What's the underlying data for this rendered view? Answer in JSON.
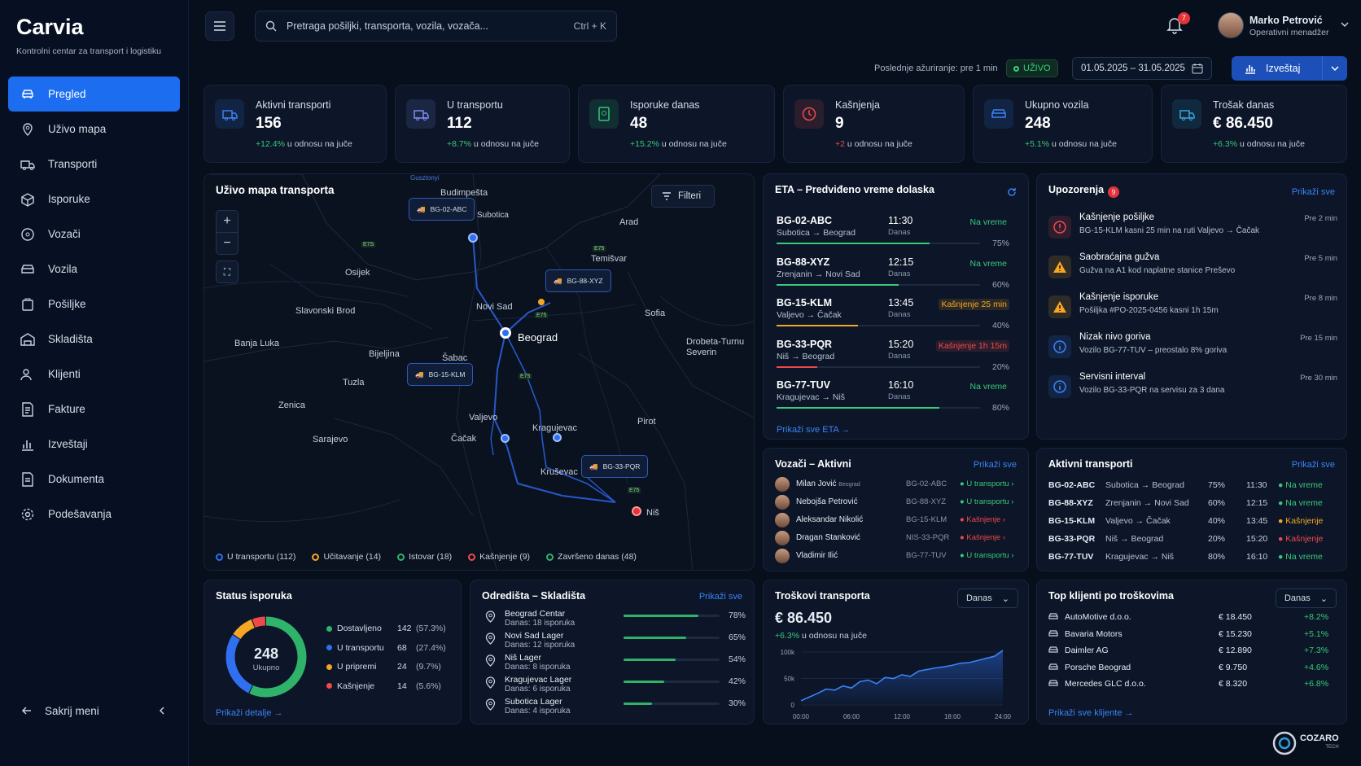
{
  "brand": {
    "name": "Carvia",
    "tagline": "Kontrolni centar za transport i logistiku"
  },
  "nav": {
    "items": [
      {
        "label": "Pregled",
        "icon": "car-icon",
        "active": true
      },
      {
        "label": "Uživo mapa",
        "icon": "map-pin-icon"
      },
      {
        "label": "Transporti",
        "icon": "truck-icon"
      },
      {
        "label": "Isporuke",
        "icon": "package-icon"
      },
      {
        "label": "Vozači",
        "icon": "driver-icon"
      },
      {
        "label": "Vozila",
        "icon": "vehicle-icon"
      },
      {
        "label": "Pošiljke",
        "icon": "box-icon"
      },
      {
        "label": "Skladišta",
        "icon": "warehouse-icon"
      },
      {
        "label": "Klijenti",
        "icon": "users-icon"
      },
      {
        "label": "Fakture",
        "icon": "invoice-icon"
      },
      {
        "label": "Izveštaji",
        "icon": "bar-chart-icon"
      },
      {
        "label": "Dokumenta",
        "icon": "document-icon"
      },
      {
        "label": "Podešavanja",
        "icon": "settings-icon"
      }
    ],
    "hide_label": "Sakrij meni"
  },
  "topbar": {
    "search_placeholder": "Pretraga pošiljki, transporta, vozila, vozača...",
    "search_shortcut": "Ctrl + K",
    "notifications": "7",
    "user_name": "Marko Petrović",
    "user_role": "Operativni menadžer"
  },
  "subbar": {
    "last_update": "Poslednje ažuriranje: pre 1 min",
    "live": "UŽIVO",
    "date_range": "01.05.2025 – 31.05.2025",
    "report": "Izveštaj"
  },
  "kpis": [
    {
      "label": "Aktivni transporti",
      "value": "156",
      "change": "+12.4%",
      "suffix": "u odnosu na juče",
      "color": "#3b82f6"
    },
    {
      "label": "U transportu",
      "value": "112",
      "change": "+8.7%",
      "suffix": "u odnosu na juče",
      "color": "#7c8cf8"
    },
    {
      "label": "Isporuke danas",
      "value": "48",
      "change": "+15.2%",
      "suffix": "u odnosu na juče",
      "color": "#34c77b"
    },
    {
      "label": "Kašnjenja",
      "value": "9",
      "change": "+2",
      "suffix": "u odnosu na juče",
      "color": "#ef4a4a"
    },
    {
      "label": "Ukupno vozila",
      "value": "248",
      "change": "+5.1%",
      "suffix": "u odnosu na juče",
      "color": "#3b82f6"
    },
    {
      "label": "Trošak danas",
      "value": "€ 86.450",
      "change": "+6.3%",
      "suffix": "u odnosu na juče",
      "color": "#35a7d8"
    }
  ],
  "map": {
    "title": "Uživo mapa transporta",
    "filter": "Filteri",
    "cities": [
      "Budimpešta",
      "Arad",
      "Temišvar",
      "Osijek",
      "Slavonski Brod",
      "Novi Sad",
      "Beograd",
      "Banja Luka",
      "Bijeljina",
      "Šabac",
      "Tuzla",
      "Zenica",
      "Valjevo",
      "Sarajevo",
      "Čačak",
      "Kragujevac",
      "Pirot",
      "Kruševac",
      "Niš",
      "Drobeta-Turnu Severin",
      "Sofia",
      "Subotica",
      "Gusztonyi"
    ],
    "road_labels": [
      "E7S",
      "E75",
      "E75",
      "E75",
      "E75"
    ],
    "trucks": [
      "BG-02-ABC",
      "BG-88-XYZ",
      "BG-15-KLM",
      "BG-33-PQR"
    ],
    "legend": [
      "U transportu (112)",
      "Učitavanje (14)",
      "Istovar (18)",
      "Kašnjenje (9)",
      "Završeno danas (48)"
    ]
  },
  "eta": {
    "title": "ETA – Predviđeno vreme dolaska",
    "link": "Prikaži sve ETA",
    "rows": [
      {
        "code": "BG-02-ABC",
        "from": "Subotica",
        "to": "Beograd",
        "time": "11:30",
        "day": "Danas",
        "status": "Na vreme",
        "pct": "75%",
        "progress": 75,
        "color": "#39c97a"
      },
      {
        "code": "BG-88-XYZ",
        "from": "Zrenjanin",
        "to": "Novi Sad",
        "time": "12:15",
        "day": "Danas",
        "status": "Na vreme",
        "pct": "60%",
        "progress": 60,
        "color": "#39c97a"
      },
      {
        "code": "BG-15-KLM",
        "from": "Valjevo",
        "to": "Čačak",
        "time": "13:45",
        "day": "Danas",
        "status": "Kašnjenje 25 min",
        "pct": "40%",
        "progress": 40,
        "color": "#f5a623"
      },
      {
        "code": "BG-33-PQR",
        "from": "Niš",
        "to": "Beograd",
        "time": "15:20",
        "day": "Danas",
        "status": "Kašnjenje 1h 15m",
        "pct": "20%",
        "progress": 20,
        "color": "#ef4a4a"
      },
      {
        "code": "BG-77-TUV",
        "from": "Kragujevac",
        "to": "Niš",
        "time": "16:10",
        "day": "Danas",
        "status": "Na vreme",
        "pct": "80%",
        "progress": 80,
        "color": "#39c97a"
      }
    ]
  },
  "alerts": {
    "title": "Upozorenja",
    "count": "9",
    "link": "Prikaži sve",
    "rows": [
      {
        "title": "Kašnjenje pošiljke",
        "desc": "BG-15-KLM kasni 25 min na ruti Valjevo → Čačak",
        "time": "Pre 2 min",
        "kind": "error-icon",
        "color": "#ef4a4a"
      },
      {
        "title": "Saobraćajna gužva",
        "desc": "Gužva na A1 kod naplatne stanice Preševo",
        "time": "Pre 5 min",
        "kind": "warning-icon",
        "color": "#f5a623"
      },
      {
        "title": "Kašnjenje isporuke",
        "desc": "Pošiljka #PO-2025-0456 kasni 1h 15m",
        "time": "Pre 8 min",
        "kind": "warning-icon",
        "color": "#f5a623"
      },
      {
        "title": "Nizak nivo goriva",
        "desc": "Vozilo BG-77-TUV – preostalo 8% goriva",
        "time": "Pre 15 min",
        "kind": "info-icon",
        "color": "#3b82f6"
      },
      {
        "title": "Servisni interval",
        "desc": "Vozilo BG-33-PQR na servisu za 3 dana",
        "time": "Pre 30 min",
        "kind": "info-icon",
        "color": "#3b82f6"
      }
    ]
  },
  "drivers": {
    "title": "Vozači – Aktivni",
    "link": "Prikaži sve",
    "rows": [
      {
        "name": "Milan Jović",
        "place": "Beograd",
        "vehicle": "BG-02-ABC",
        "status": "U transportu",
        "color": "#39c97a"
      },
      {
        "name": "Nebojša Petrović",
        "vehicle": "BG-88-XYZ",
        "status": "U transportu",
        "color": "#39c97a"
      },
      {
        "name": "Aleksandar Nikolić",
        "vehicle": "BG-15-KLM",
        "status": "Kašnjenje",
        "color": "#ef4a4a"
      },
      {
        "name": "Dragan Stanković",
        "vehicle": "NIS-33-PQR",
        "status": "Kašnjenje",
        "color": "#ef4a4a"
      },
      {
        "name": "Vladimir Ilić",
        "vehicle": "BG-77-TUV",
        "status": "U transportu",
        "color": "#39c97a"
      }
    ]
  },
  "active": {
    "title": "Aktivni transporti",
    "link": "Prikaži sve",
    "rows": [
      {
        "code": "BG-02-ABC",
        "from": "Subotica",
        "to": "Beograd",
        "pct": "75%",
        "time": "11:30",
        "status": "Na vreme",
        "color": "#39c97a"
      },
      {
        "code": "BG-88-XYZ",
        "from": "Zrenjanin",
        "to": "Novi Sad",
        "pct": "60%",
        "time": "12:15",
        "status": "Na vreme",
        "color": "#39c97a"
      },
      {
        "code": "BG-15-KLM",
        "from": "Valjevo",
        "to": "Čačak",
        "pct": "40%",
        "time": "13:45",
        "status": "Kašnjenje",
        "color": "#f5a623"
      },
      {
        "code": "BG-33-PQR",
        "from": "Niš",
        "to": "Beograd",
        "pct": "20%",
        "time": "15:20",
        "status": "Kašnjenje",
        "color": "#ef4a4a"
      },
      {
        "code": "BG-77-TUV",
        "from": "Kragujevac",
        "to": "Niš",
        "pct": "80%",
        "time": "16:10",
        "status": "Na vreme",
        "color": "#39c97a"
      }
    ]
  },
  "status": {
    "title": "Status isporuka",
    "total": "248",
    "total_label": "Ukupno",
    "link": "Prikaži detalje",
    "rows": [
      {
        "label": "Dostavljeno",
        "count": "142",
        "pct": "(57.3%)",
        "value": 142,
        "color": "#2fb36a"
      },
      {
        "label": "U transportu",
        "count": "68",
        "pct": "(27.4%)",
        "value": 68,
        "color": "#2f6ff0"
      },
      {
        "label": "U pripremi",
        "count": "24",
        "pct": "(9.7%)",
        "value": 24,
        "color": "#f5a623"
      },
      {
        "label": "Kašnjenje",
        "count": "14",
        "pct": "(5.6%)",
        "value": 14,
        "color": "#ef4a4a"
      }
    ]
  },
  "destinations": {
    "title": "Odredišta – Skladišta",
    "link": "Prikaži sve",
    "rows": [
      {
        "name": "Beograd Centar",
        "sub": "Danas: 18 isporuka",
        "pct": "78%",
        "progress": 78
      },
      {
        "name": "Novi Sad Lager",
        "sub": "Danas: 12 isporuka",
        "pct": "65%",
        "progress": 65
      },
      {
        "name": "Niš Lager",
        "sub": "Danas: 8 isporuka",
        "pct": "54%",
        "progress": 54
      },
      {
        "name": "Kragujevac Lager",
        "sub": "Danas: 6 isporuka",
        "pct": "42%",
        "progress": 42
      },
      {
        "name": "Subotica Lager",
        "sub": "Danas: 4 isporuka",
        "pct": "30%",
        "progress": 30
      }
    ]
  },
  "costs": {
    "title": "Troškovi transporta",
    "period": "Danas",
    "total": "€ 86.450",
    "change": "+6.3%",
    "change_suffix": "u odnosu na juče"
  },
  "chart_data": {
    "type": "area",
    "x": [
      "00:00",
      "06:00",
      "12:00",
      "18:00",
      "24:00"
    ],
    "series": [
      {
        "x": [
          0,
          1,
          2,
          3,
          4,
          5,
          6,
          7,
          8,
          9,
          10,
          11,
          12,
          13,
          14,
          15,
          16,
          17,
          18,
          19,
          20,
          21,
          22,
          23,
          24
        ],
        "values": [
          8,
          15,
          22,
          30,
          28,
          36,
          32,
          44,
          47,
          40,
          52,
          50,
          57,
          54,
          64,
          67,
          70,
          72,
          75,
          79,
          80,
          84,
          88,
          92,
          103
        ]
      }
    ],
    "yticks": [
      "0",
      "50k",
      "100k"
    ],
    "ylim": [
      0,
      100
    ]
  },
  "clients": {
    "title": "Top klijenti po troškovima",
    "period": "Danas",
    "link": "Prikaži sve klijente",
    "rows": [
      {
        "name": "AutoMotive d.o.o.",
        "amount": "€ 18.450",
        "change": "+8.2%"
      },
      {
        "name": "Bavaria Motors",
        "amount": "€ 15.230",
        "change": "+5.1%"
      },
      {
        "name": "Daimler AG",
        "amount": "€ 12.890",
        "change": "+7.3%"
      },
      {
        "name": "Porsche Beograd",
        "amount": "€ 9.750",
        "change": "+4.6%"
      },
      {
        "name": "Mercedes GLC d.o.o.",
        "amount": "€ 8.320",
        "change": "+6.8%"
      }
    ]
  },
  "footer": {
    "brand": "COZARO",
    "brand_sub": "TECH"
  }
}
